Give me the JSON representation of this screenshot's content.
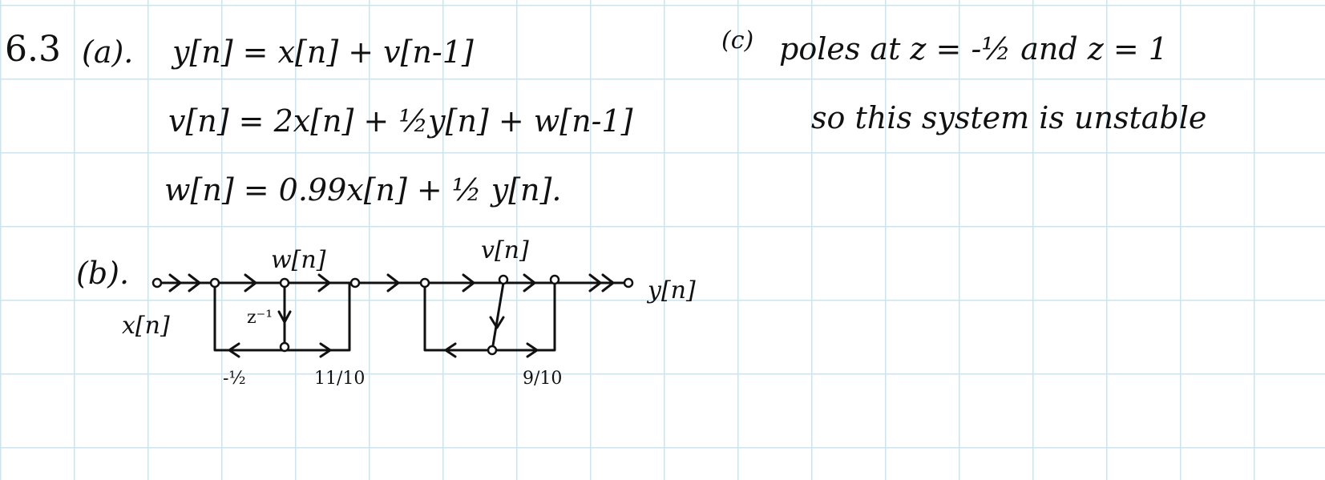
{
  "problem": {
    "number": "6.3",
    "part_a": {
      "label": "(a).",
      "equations": [
        "y[n] = x[n] + v[n-1]",
        "v[n] = 2x[n] + ½y[n] + w[n-1]",
        "w[n] = 0.99x[n] + ½ y[n]."
      ]
    },
    "part_b": {
      "label": "(b).",
      "input_label": "x[n]",
      "output_label": "y[n]",
      "node_label_w": "w[n]",
      "node_label_v": "v[n]",
      "delay_label": "z⁻¹",
      "coef_left": "-½",
      "coef_mid": "11/10",
      "coef_right": "9/10"
    },
    "part_c": {
      "label": "(c)",
      "line1": "poles at z = -½ and z = 1",
      "line2": "so this system is unstable"
    }
  }
}
